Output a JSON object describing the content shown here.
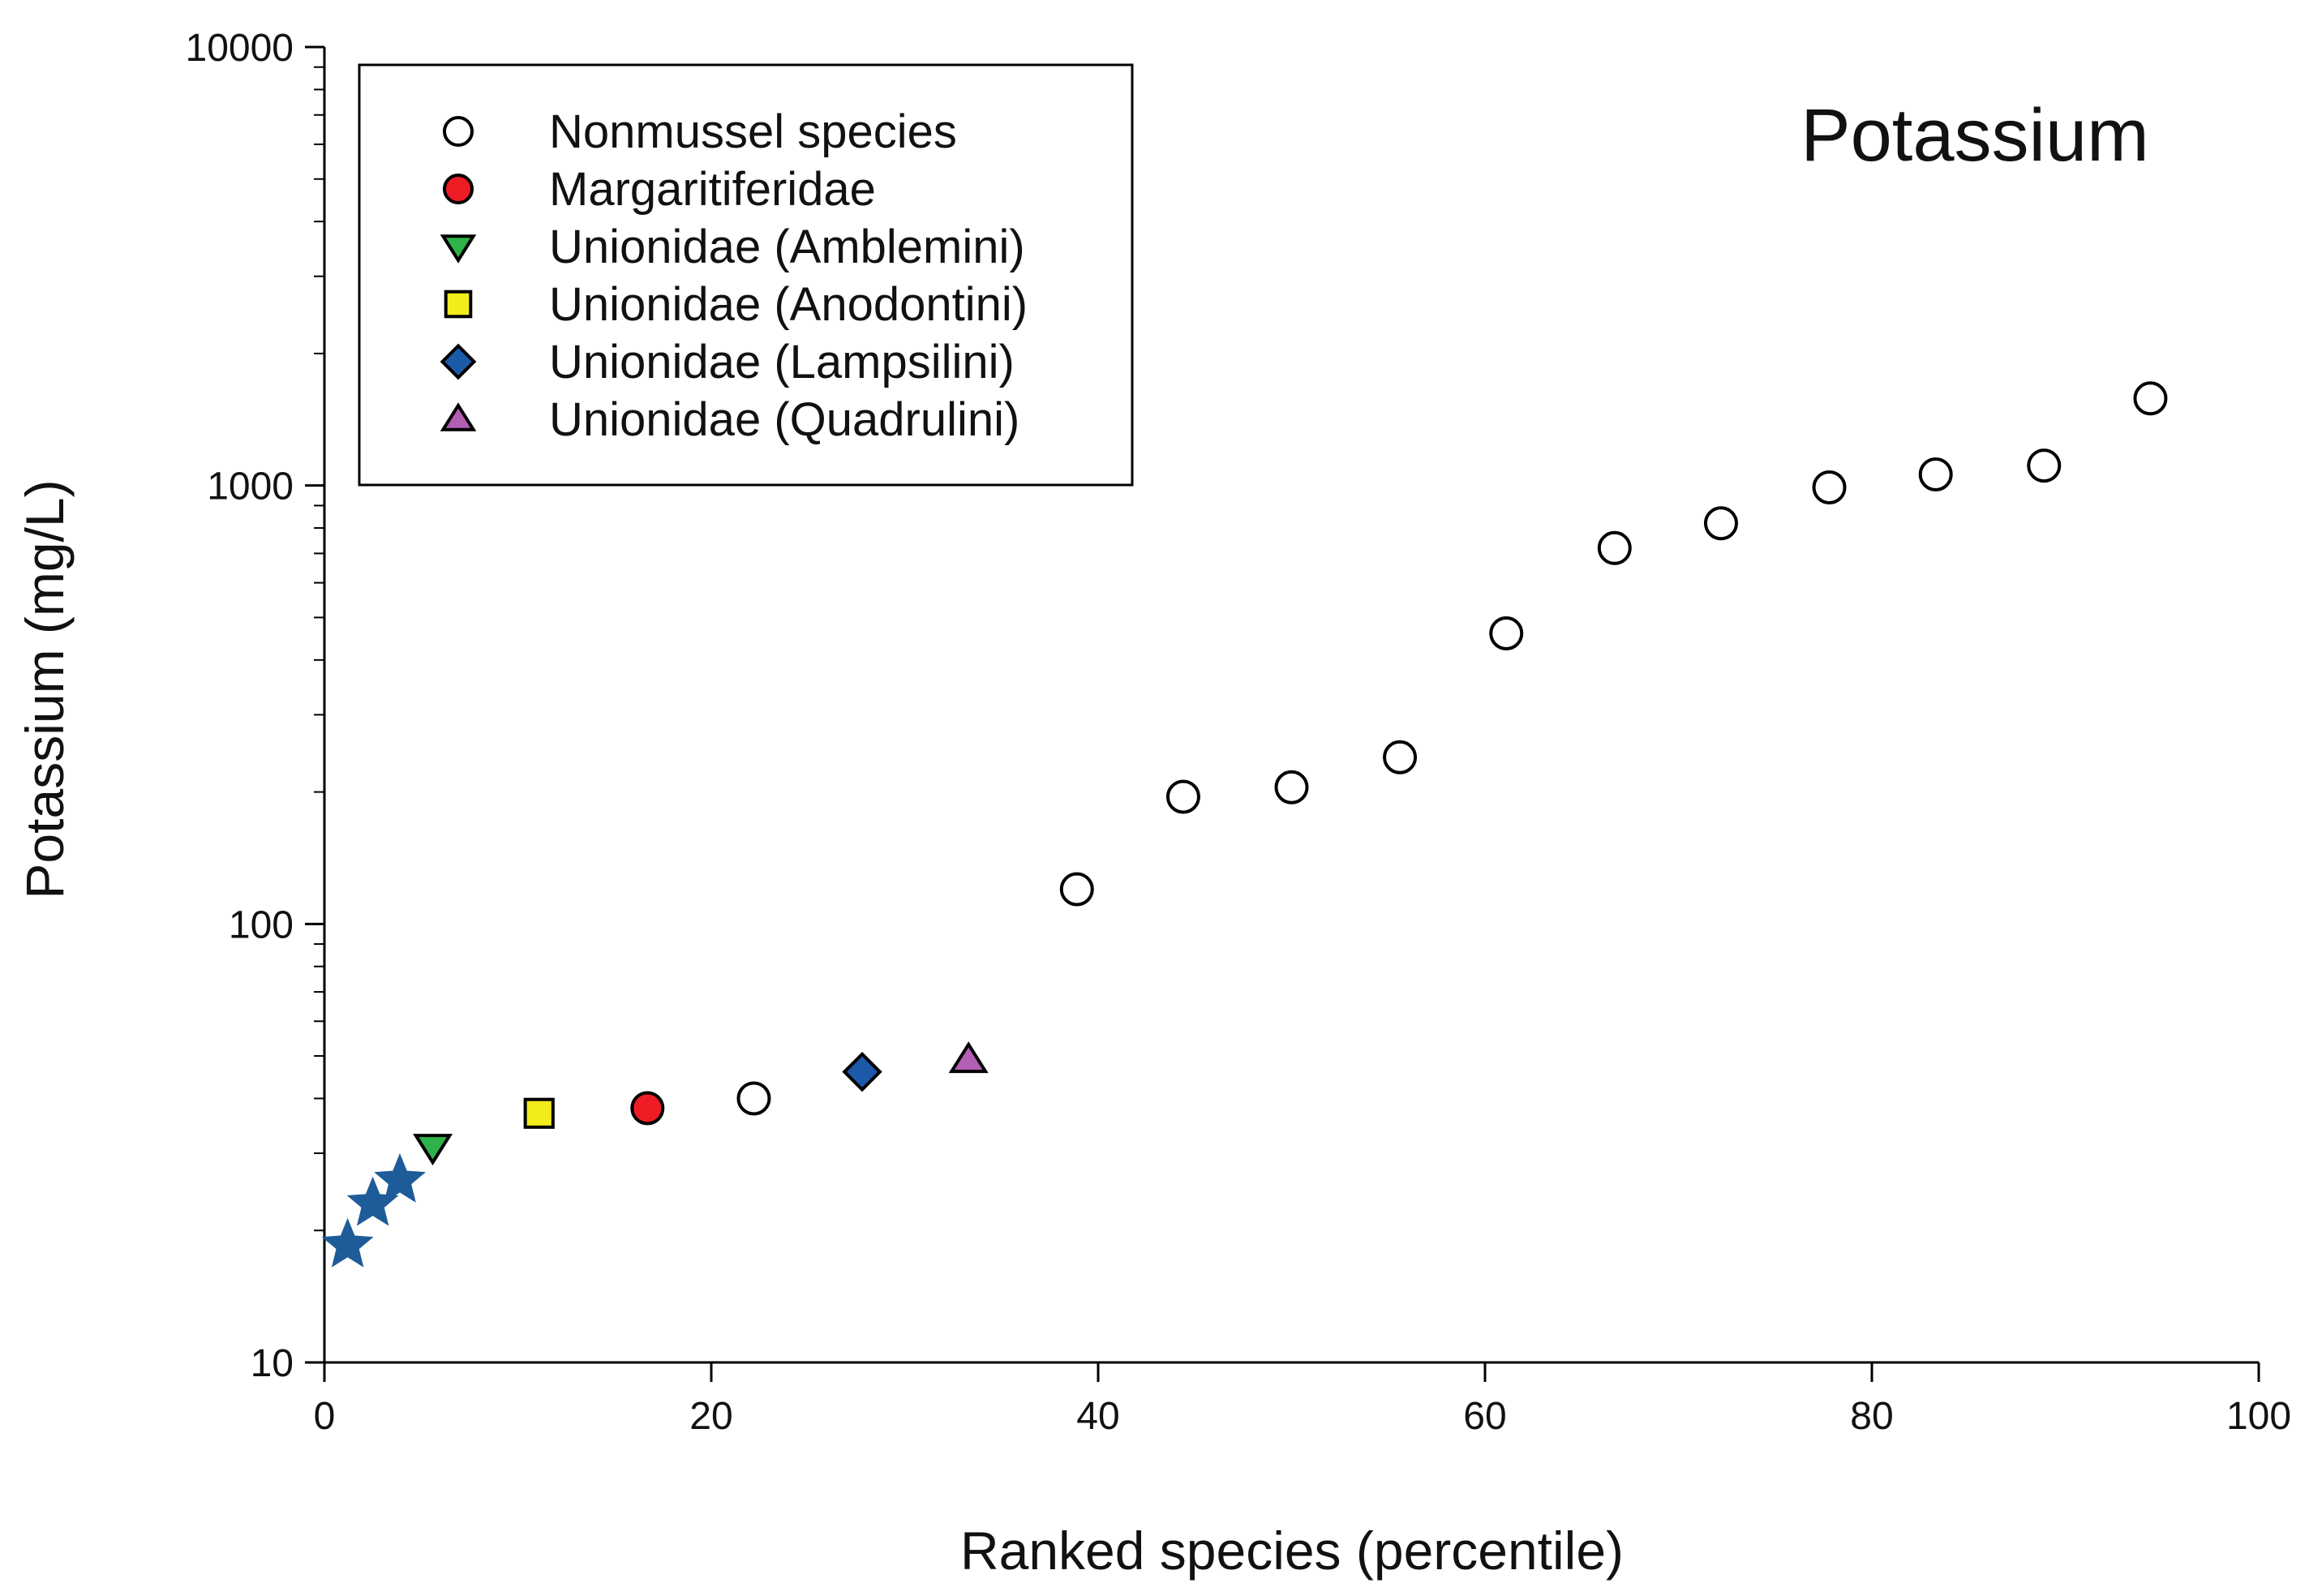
{
  "chart_data": {
    "type": "scatter",
    "title": "Potassium",
    "xlabel": "Ranked species (percentile)",
    "ylabel": "Potassium (mg/L)",
    "xlim": [
      0,
      100
    ],
    "ylim": [
      10,
      10000
    ],
    "yscale": "log",
    "x_ticks": [
      0,
      20,
      40,
      60,
      80,
      100
    ],
    "y_ticks": [
      10,
      100,
      1000,
      10000
    ],
    "legend_position": "top-left",
    "series": [
      {
        "name": "Nonmussel species",
        "marker": "circle",
        "fill": "#ffffff",
        "color": "#000000",
        "points": [
          {
            "x": 22.2,
            "y": 40
          },
          {
            "x": 38.9,
            "y": 120
          },
          {
            "x": 44.4,
            "y": 195
          },
          {
            "x": 50.0,
            "y": 205
          },
          {
            "x": 55.6,
            "y": 240
          },
          {
            "x": 61.1,
            "y": 460
          },
          {
            "x": 66.7,
            "y": 720
          },
          {
            "x": 72.2,
            "y": 820
          },
          {
            "x": 77.8,
            "y": 990
          },
          {
            "x": 83.3,
            "y": 1060
          },
          {
            "x": 88.9,
            "y": 1110
          },
          {
            "x": 94.4,
            "y": 1580
          }
        ]
      },
      {
        "name": "Margaritiferidae",
        "marker": "circle",
        "fill": "#ee1c25",
        "color": "#000000",
        "points": [
          {
            "x": 16.7,
            "y": 38
          }
        ]
      },
      {
        "name": "Unionidae (Amblemini)",
        "marker": "triangle-down",
        "fill": "#2db34a",
        "color": "#000000",
        "points": [
          {
            "x": 5.6,
            "y": 31
          }
        ]
      },
      {
        "name": "Unionidae (Anodontini)",
        "marker": "square",
        "fill": "#f2ec1c",
        "color": "#000000",
        "points": [
          {
            "x": 11.1,
            "y": 37
          }
        ]
      },
      {
        "name": "Unionidae (Lampsilini)",
        "marker": "diamond",
        "fill": "#1b5aa8",
        "color": "#000000",
        "points": [
          {
            "x": 27.8,
            "y": 46
          }
        ]
      },
      {
        "name": "Unionidae (Quadrulini)",
        "marker": "triangle-up",
        "fill": "#b25eb3",
        "color": "#000000",
        "points": [
          {
            "x": 33.3,
            "y": 49
          }
        ]
      }
    ],
    "annotations": [
      {
        "name": "stars",
        "marker": "star",
        "fill": "#1e5c99",
        "points": [
          {
            "x": 1.2,
            "y": 18.5
          },
          {
            "x": 2.5,
            "y": 23
          },
          {
            "x": 3.9,
            "y": 26
          }
        ]
      }
    ]
  }
}
